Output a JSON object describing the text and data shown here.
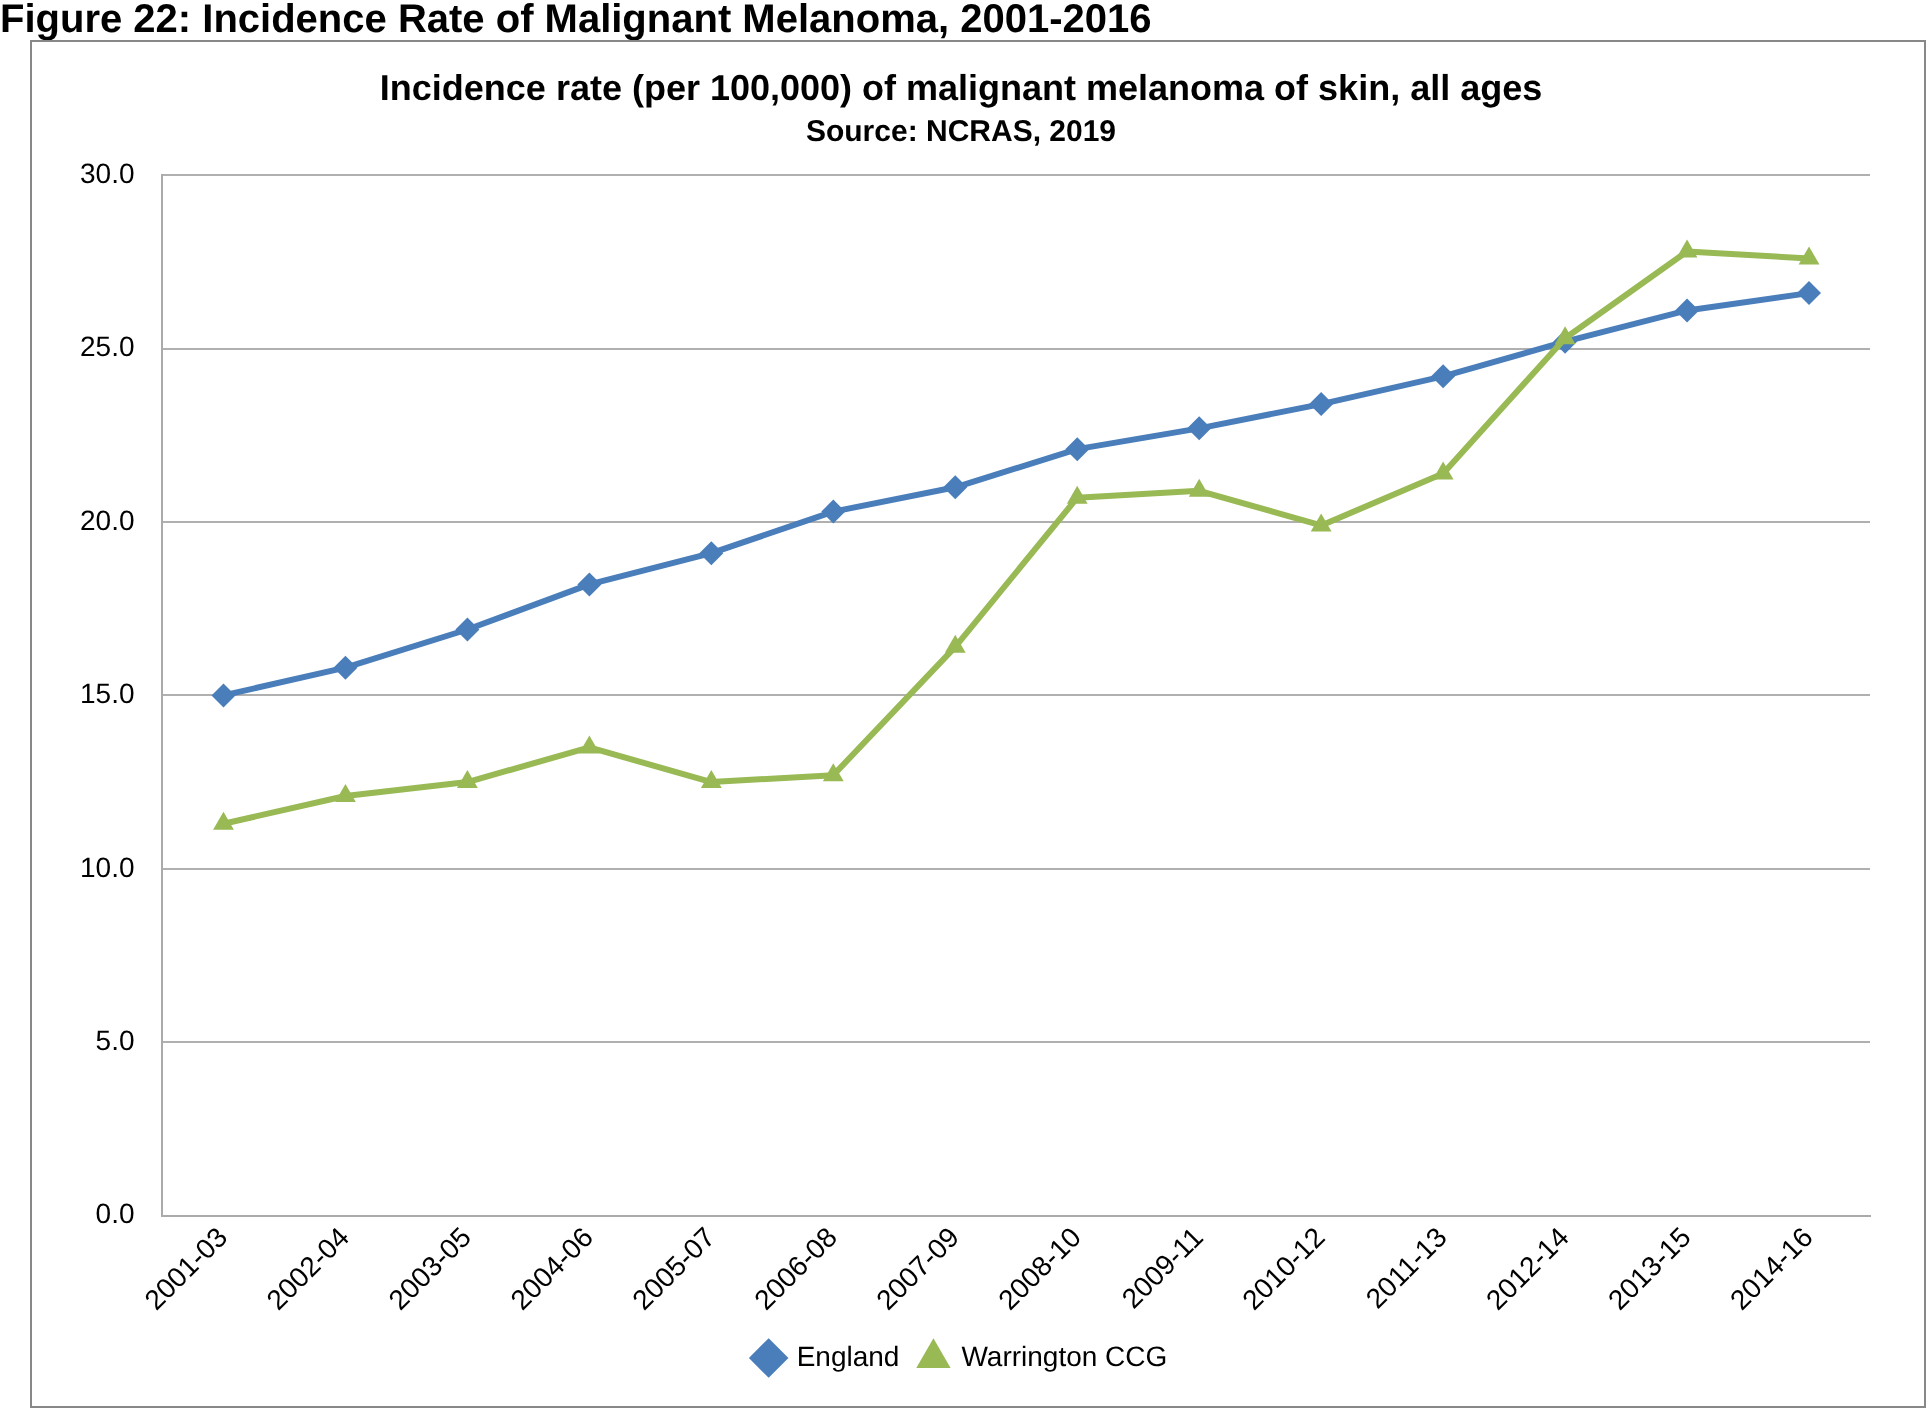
{
  "chart_data": {
    "type": "line",
    "title": "Incidence rate (per 100,000) of malignant melanoma of skin, all ages",
    "subtitle": "Source: NCRAS, 2019",
    "annotations": [
      "Figure 22: Incidence Rate of Malignant Melanoma, 2001-2016"
    ],
    "categories": [
      "2001-03",
      "2002-04",
      "2003-05",
      "2004-06",
      "2005-07",
      "2006-08",
      "2007-09",
      "2008-10",
      "2009-11",
      "2010-12",
      "2011-13",
      "2012-14",
      "2013-15",
      "2014-16"
    ],
    "series": [
      {
        "name": "England",
        "color": "#4a7ebb",
        "marker": "diamond",
        "values": [
          15.0,
          15.8,
          16.9,
          18.2,
          19.1,
          20.3,
          21.0,
          22.1,
          22.7,
          23.4,
          24.2,
          25.2,
          26.1,
          26.6
        ]
      },
      {
        "name": "Warrington CCG",
        "color": "#98b954",
        "marker": "triangle",
        "values": [
          11.3,
          12.1,
          12.5,
          13.5,
          12.5,
          12.7,
          16.4,
          20.7,
          20.9,
          19.9,
          21.4,
          25.3,
          27.8,
          27.6
        ]
      }
    ],
    "ylim": [
      0,
      30
    ],
    "yticks": [
      {
        "value": 0,
        "label": "0.0"
      },
      {
        "value": 5,
        "label": "5.0"
      },
      {
        "value": 10,
        "label": "10.0"
      },
      {
        "value": 15,
        "label": "15.0"
      },
      {
        "value": 20,
        "label": "20.0"
      },
      {
        "value": 25,
        "label": "25.0"
      },
      {
        "value": 30,
        "label": "30.0"
      }
    ],
    "grid": "y",
    "legend": "bottom",
    "line_style": "solid"
  }
}
